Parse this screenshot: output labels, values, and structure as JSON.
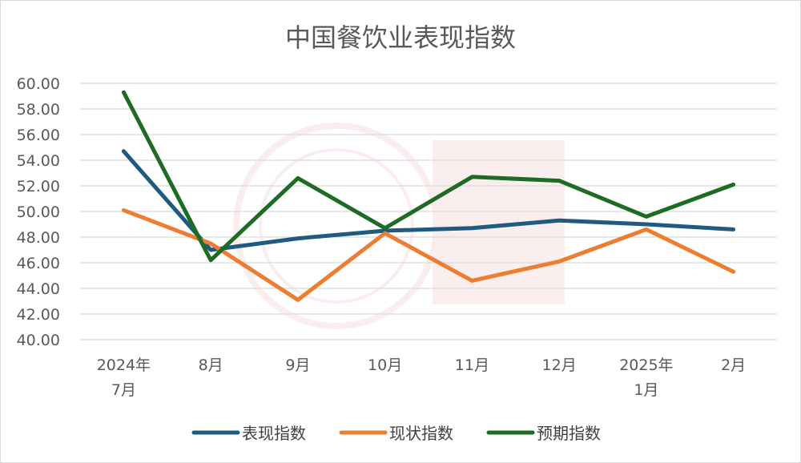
{
  "chart_data": {
    "type": "line",
    "title": "中国餐饮业表现指数",
    "xlabel": "",
    "ylabel": "",
    "categories": [
      [
        "2024年",
        "7月"
      ],
      [
        "8月"
      ],
      [
        "9月"
      ],
      [
        "10月"
      ],
      [
        "11月"
      ],
      [
        "12月"
      ],
      [
        "2025年",
        "1月"
      ],
      [
        "2月"
      ]
    ],
    "ylim": [
      40,
      60
    ],
    "ytick_step": 2,
    "y_tick_decimals": 2,
    "grid": true,
    "legend_position": "bottom",
    "series": [
      {
        "name": "表现指数",
        "color": "#1f5a80",
        "values": [
          54.7,
          47.0,
          47.9,
          48.5,
          48.7,
          49.3,
          49.0,
          48.6
        ]
      },
      {
        "name": "现状指数",
        "color": "#ed7d31",
        "values": [
          50.1,
          47.5,
          43.1,
          48.3,
          44.6,
          46.1,
          48.6,
          45.3
        ]
      },
      {
        "name": "预期指数",
        "color": "#1e6b24",
        "values": [
          59.3,
          46.2,
          52.6,
          48.7,
          52.7,
          52.4,
          49.6,
          52.1
        ]
      }
    ]
  }
}
